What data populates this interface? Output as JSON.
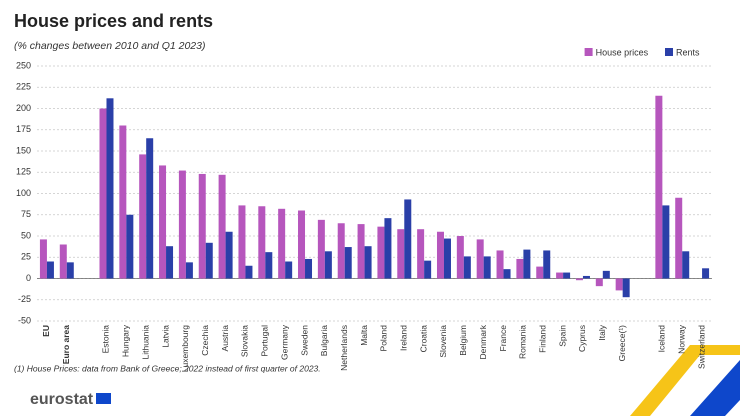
{
  "chart_data": {
    "type": "bar",
    "title": "House prices and rents",
    "subtitle": "(% changes between 2010 and Q1 2023)",
    "footnote": "(1) House Prices: data from Bank of Greece; 2022 instead of first quarter of 2023.",
    "logo": "eurostat",
    "categories": [
      "EU",
      "Euro area",
      null,
      "Estonia",
      "Hungary",
      "Lithuania",
      "Latvia",
      "Luxembourg",
      "Czechia",
      "Austria",
      "Slovakia",
      "Portugal",
      "Germany",
      "Sweden",
      "Bulgaria",
      "Netherlands",
      "Malta",
      "Poland",
      "Ireland",
      "Croatia",
      "Slovenia",
      "Belgium",
      "Denmark",
      "France",
      "Romania",
      "Finland",
      "Spain",
      "Cyprus",
      "Italy",
      "Greece(¹)",
      null,
      "Iceland",
      "Norway",
      "Switzerland"
    ],
    "series": [
      {
        "name": "House prices",
        "color": "#b656bd",
        "values": [
          46,
          40,
          null,
          200,
          180,
          146,
          133,
          127,
          123,
          122,
          86,
          85,
          82,
          80,
          69,
          65,
          64,
          61,
          58,
          58,
          55,
          50,
          46,
          33,
          23,
          14,
          7,
          -2,
          -9,
          -14,
          null,
          215,
          95,
          null
        ]
      },
      {
        "name": "Rents",
        "color": "#2a3fa8",
        "values": [
          20,
          19,
          null,
          212,
          75,
          165,
          38,
          19,
          42,
          55,
          15,
          31,
          20,
          23,
          32,
          37,
          38,
          71,
          93,
          21,
          47,
          26,
          26,
          11,
          34,
          33,
          7,
          3,
          9,
          -22,
          null,
          86,
          32,
          12
        ]
      }
    ],
    "ylim": [
      -50,
      250
    ],
    "yticks": [
      -50,
      -25,
      0,
      25,
      50,
      75,
      100,
      125,
      150,
      175,
      200,
      225,
      250
    ],
    "grid": true,
    "legend": "top-right"
  }
}
